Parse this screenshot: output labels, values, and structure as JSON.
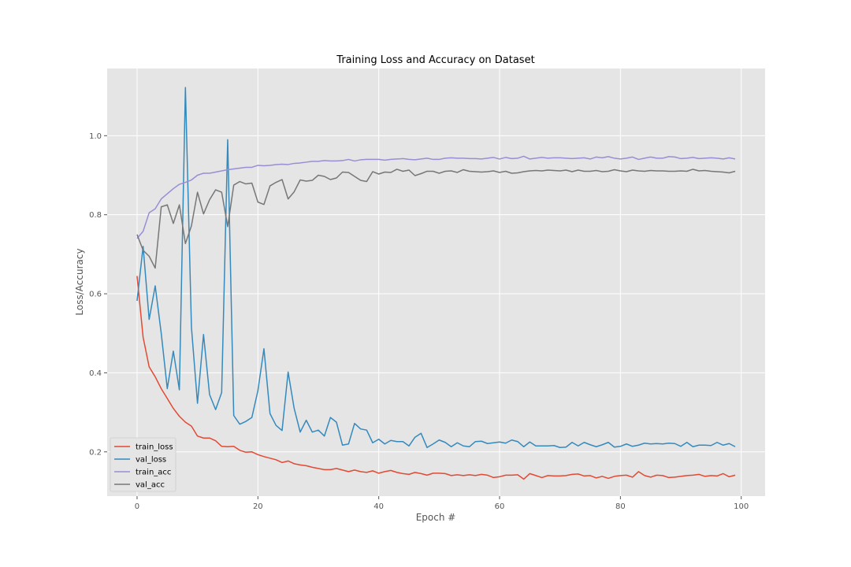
{
  "chart_data": {
    "type": "line",
    "title": "Training Loss and Accuracy on Dataset",
    "xlabel": "Epoch #",
    "ylabel": "Loss/Accuracy",
    "xlim": [
      -4.95,
      103.95
    ],
    "ylim": [
      0.088,
      1.17
    ],
    "xticks": [
      0,
      20,
      40,
      60,
      80,
      100
    ],
    "yticks": [
      0.2,
      0.4,
      0.6,
      0.8,
      1.0
    ],
    "xtick_labels": [
      "0",
      "20",
      "40",
      "60",
      "80",
      "100"
    ],
    "ytick_labels": [
      "0.2",
      "0.4",
      "0.6",
      "0.8",
      "1.0"
    ],
    "grid": true,
    "legend_position": "lower-left",
    "x": [
      0,
      1,
      2,
      3,
      4,
      5,
      6,
      7,
      8,
      9,
      10,
      11,
      12,
      13,
      14,
      15,
      16,
      17,
      18,
      19,
      20,
      21,
      22,
      23,
      24,
      25,
      26,
      27,
      28,
      29,
      30,
      31,
      32,
      33,
      34,
      35,
      36,
      37,
      38,
      39,
      40,
      41,
      42,
      43,
      44,
      45,
      46,
      47,
      48,
      49,
      50,
      51,
      52,
      53,
      54,
      55,
      56,
      57,
      58,
      59,
      60,
      61,
      62,
      63,
      64,
      65,
      66,
      67,
      68,
      69,
      70,
      71,
      72,
      73,
      74,
      75,
      76,
      77,
      78,
      79,
      80,
      81,
      82,
      83,
      84,
      85,
      86,
      87,
      88,
      89,
      90,
      91,
      92,
      93,
      94,
      95,
      96,
      97,
      98,
      99
    ],
    "series": [
      {
        "name": "train_loss",
        "color": "#e24a33",
        "values": [
          0.645,
          0.49,
          0.415,
          0.39,
          0.36,
          0.335,
          0.31,
          0.29,
          0.275,
          0.265,
          0.24,
          0.235,
          0.235,
          0.228,
          0.214,
          0.213,
          0.214,
          0.204,
          0.199,
          0.2,
          0.193,
          0.188,
          0.184,
          0.18,
          0.173,
          0.177,
          0.17,
          0.167,
          0.165,
          0.161,
          0.158,
          0.155,
          0.155,
          0.158,
          0.154,
          0.15,
          0.154,
          0.15,
          0.148,
          0.152,
          0.146,
          0.15,
          0.153,
          0.148,
          0.145,
          0.143,
          0.148,
          0.145,
          0.141,
          0.146,
          0.146,
          0.145,
          0.14,
          0.142,
          0.14,
          0.142,
          0.14,
          0.143,
          0.141,
          0.135,
          0.137,
          0.141,
          0.141,
          0.142,
          0.131,
          0.145,
          0.14,
          0.135,
          0.14,
          0.139,
          0.139,
          0.14,
          0.143,
          0.144,
          0.139,
          0.14,
          0.134,
          0.138,
          0.133,
          0.138,
          0.14,
          0.141,
          0.136,
          0.15,
          0.14,
          0.136,
          0.141,
          0.14,
          0.135,
          0.136,
          0.138,
          0.14,
          0.141,
          0.143,
          0.138,
          0.14,
          0.139,
          0.145,
          0.137,
          0.141
        ]
      },
      {
        "name": "val_loss",
        "color": "#348abd",
        "values": [
          0.582,
          0.72,
          0.535,
          0.62,
          0.5,
          0.36,
          0.455,
          0.357,
          1.122,
          0.515,
          0.323,
          0.497,
          0.345,
          0.307,
          0.35,
          0.99,
          0.292,
          0.27,
          0.277,
          0.287,
          0.355,
          0.461,
          0.297,
          0.267,
          0.254,
          0.402,
          0.31,
          0.25,
          0.28,
          0.25,
          0.255,
          0.24,
          0.287,
          0.275,
          0.217,
          0.22,
          0.272,
          0.258,
          0.255,
          0.223,
          0.232,
          0.22,
          0.229,
          0.226,
          0.226,
          0.215,
          0.237,
          0.247,
          0.211,
          0.22,
          0.23,
          0.224,
          0.213,
          0.223,
          0.215,
          0.213,
          0.226,
          0.227,
          0.221,
          0.223,
          0.225,
          0.222,
          0.23,
          0.226,
          0.213,
          0.225,
          0.215,
          0.215,
          0.215,
          0.216,
          0.211,
          0.212,
          0.224,
          0.215,
          0.224,
          0.218,
          0.213,
          0.218,
          0.224,
          0.212,
          0.214,
          0.22,
          0.214,
          0.217,
          0.222,
          0.22,
          0.221,
          0.22,
          0.222,
          0.221,
          0.214,
          0.224,
          0.213,
          0.217,
          0.217,
          0.216,
          0.224,
          0.217,
          0.221,
          0.213
        ]
      },
      {
        "name": "train_acc",
        "color": "#988ed5",
        "values": [
          0.74,
          0.758,
          0.805,
          0.815,
          0.84,
          0.853,
          0.866,
          0.877,
          0.882,
          0.888,
          0.9,
          0.905,
          0.905,
          0.908,
          0.911,
          0.914,
          0.916,
          0.918,
          0.92,
          0.92,
          0.925,
          0.924,
          0.925,
          0.927,
          0.928,
          0.927,
          0.93,
          0.931,
          0.933,
          0.935,
          0.935,
          0.937,
          0.936,
          0.936,
          0.937,
          0.94,
          0.936,
          0.939,
          0.94,
          0.94,
          0.94,
          0.938,
          0.94,
          0.941,
          0.942,
          0.94,
          0.939,
          0.941,
          0.943,
          0.94,
          0.94,
          0.943,
          0.944,
          0.943,
          0.943,
          0.942,
          0.942,
          0.941,
          0.943,
          0.945,
          0.941,
          0.945,
          0.942,
          0.943,
          0.948,
          0.941,
          0.943,
          0.945,
          0.943,
          0.944,
          0.944,
          0.943,
          0.942,
          0.943,
          0.944,
          0.941,
          0.946,
          0.944,
          0.947,
          0.943,
          0.941,
          0.943,
          0.946,
          0.94,
          0.943,
          0.946,
          0.943,
          0.943,
          0.947,
          0.946,
          0.942,
          0.943,
          0.945,
          0.942,
          0.943,
          0.944,
          0.943,
          0.941,
          0.944,
          0.941
        ]
      },
      {
        "name": "val_acc",
        "color": "#777777",
        "values": [
          0.75,
          0.71,
          0.695,
          0.665,
          0.82,
          0.825,
          0.778,
          0.825,
          0.727,
          0.772,
          0.857,
          0.802,
          0.838,
          0.863,
          0.857,
          0.77,
          0.875,
          0.884,
          0.878,
          0.88,
          0.832,
          0.826,
          0.873,
          0.882,
          0.889,
          0.84,
          0.858,
          0.888,
          0.885,
          0.887,
          0.9,
          0.897,
          0.889,
          0.893,
          0.908,
          0.907,
          0.897,
          0.887,
          0.884,
          0.909,
          0.903,
          0.908,
          0.907,
          0.915,
          0.91,
          0.913,
          0.899,
          0.904,
          0.91,
          0.91,
          0.905,
          0.91,
          0.911,
          0.907,
          0.914,
          0.91,
          0.909,
          0.908,
          0.909,
          0.911,
          0.907,
          0.91,
          0.905,
          0.906,
          0.909,
          0.911,
          0.912,
          0.911,
          0.913,
          0.912,
          0.911,
          0.913,
          0.909,
          0.913,
          0.91,
          0.91,
          0.912,
          0.909,
          0.91,
          0.914,
          0.911,
          0.909,
          0.913,
          0.911,
          0.91,
          0.912,
          0.911,
          0.911,
          0.91,
          0.91,
          0.911,
          0.91,
          0.915,
          0.911,
          0.912,
          0.91,
          0.909,
          0.908,
          0.906,
          0.91
        ]
      }
    ]
  }
}
